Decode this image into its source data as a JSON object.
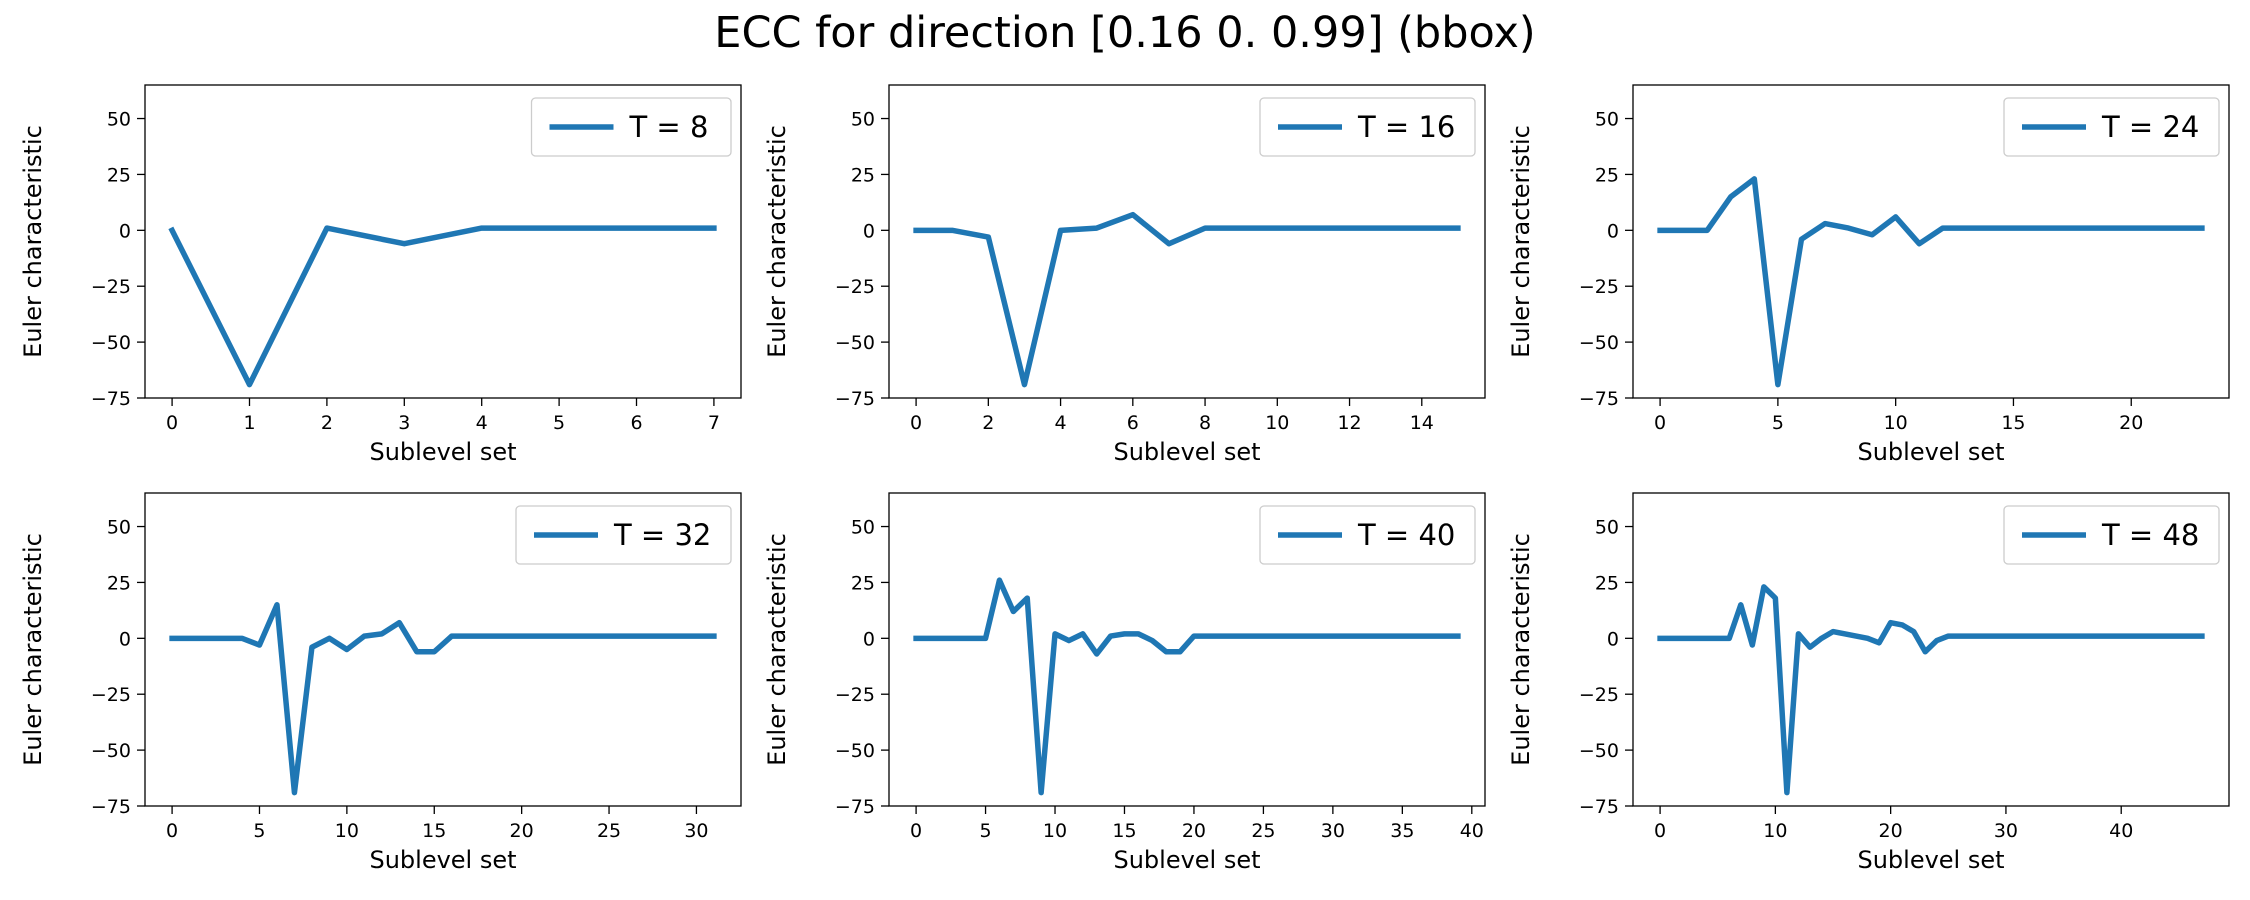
{
  "figure": {
    "title": "ECC for direction [0.16 0.   0.99] (bbox)",
    "line_color": "#1f77b4"
  },
  "chart_data": [
    {
      "type": "line",
      "xlabel": "Sublevel set",
      "ylabel": "Euler characteristic",
      "ylim": [
        -75,
        65
      ],
      "xlim": [
        -0.35,
        7.35
      ],
      "yticks": [
        -75,
        -50,
        -25,
        0,
        25,
        50
      ],
      "xticks": [
        0,
        1,
        2,
        3,
        4,
        5,
        6,
        7
      ],
      "grid": false,
      "legend": "top-right",
      "series": [
        {
          "name": "T = 8",
          "x": [
            0,
            1,
            2,
            3,
            4,
            5,
            6,
            7
          ],
          "y": [
            0,
            -69,
            1,
            -6,
            1,
            1,
            1,
            1
          ]
        }
      ]
    },
    {
      "type": "line",
      "xlabel": "Sublevel set",
      "ylabel": "Euler characteristic",
      "ylim": [
        -75,
        65
      ],
      "xlim": [
        -0.75,
        15.75
      ],
      "yticks": [
        -75,
        -50,
        -25,
        0,
        25,
        50
      ],
      "xticks": [
        0,
        2,
        4,
        6,
        8,
        10,
        12,
        14
      ],
      "grid": false,
      "legend": "top-right",
      "series": [
        {
          "name": "T = 16",
          "x": [
            0,
            1,
            2,
            3,
            4,
            5,
            6,
            7,
            8,
            9,
            10,
            11,
            12,
            13,
            14,
            15
          ],
          "y": [
            0,
            0,
            -3,
            -69,
            0,
            1,
            7,
            -6,
            1,
            1,
            1,
            1,
            1,
            1,
            1,
            1
          ]
        }
      ]
    },
    {
      "type": "line",
      "xlabel": "Sublevel set",
      "ylabel": "Euler characteristic",
      "ylim": [
        -75,
        65
      ],
      "xlim": [
        -1.15,
        24.15
      ],
      "yticks": [
        -75,
        -50,
        -25,
        0,
        25,
        50
      ],
      "xticks": [
        0,
        5,
        10,
        15,
        20
      ],
      "grid": false,
      "legend": "top-right",
      "series": [
        {
          "name": "T = 24",
          "x": [
            0,
            1,
            2,
            3,
            4,
            5,
            6,
            7,
            8,
            9,
            10,
            11,
            12,
            13,
            14,
            15,
            16,
            17,
            18,
            19,
            20,
            21,
            22,
            23
          ],
          "y": [
            0,
            0,
            0,
            15,
            23,
            -69,
            -4,
            3,
            1,
            -2,
            6,
            -6,
            1,
            1,
            1,
            1,
            1,
            1,
            1,
            1,
            1,
            1,
            1,
            1
          ]
        }
      ]
    },
    {
      "type": "line",
      "xlabel": "Sublevel set",
      "ylabel": "Euler characteristic",
      "ylim": [
        -75,
        65
      ],
      "xlim": [
        -1.55,
        32.55
      ],
      "yticks": [
        -75,
        -50,
        -25,
        0,
        25,
        50
      ],
      "xticks": [
        0,
        5,
        10,
        15,
        20,
        25,
        30
      ],
      "grid": false,
      "legend": "top-right",
      "series": [
        {
          "name": "T = 32",
          "x": [
            0,
            1,
            2,
            3,
            4,
            5,
            6,
            7,
            8,
            9,
            10,
            11,
            12,
            13,
            14,
            15,
            16,
            17,
            18,
            19,
            20,
            21,
            22,
            23,
            24,
            25,
            26,
            27,
            28,
            29,
            30,
            31
          ],
          "y": [
            0,
            0,
            0,
            0,
            0,
            -3,
            15,
            -69,
            -4,
            0,
            -5,
            1,
            2,
            7,
            -6,
            -6,
            1,
            1,
            1,
            1,
            1,
            1,
            1,
            1,
            1,
            1,
            1,
            1,
            1,
            1,
            1,
            1
          ]
        }
      ]
    },
    {
      "type": "line",
      "xlabel": "Sublevel set",
      "ylabel": "Euler characteristic",
      "ylim": [
        -75,
        65
      ],
      "xlim": [
        -1.95,
        40.95
      ],
      "yticks": [
        -75,
        -50,
        -25,
        0,
        25,
        50
      ],
      "xticks": [
        0,
        5,
        10,
        15,
        20,
        25,
        30,
        35,
        40
      ],
      "grid": false,
      "legend": "top-right",
      "series": [
        {
          "name": "T = 40",
          "x": [
            0,
            1,
            2,
            3,
            4,
            5,
            6,
            7,
            8,
            9,
            10,
            11,
            12,
            13,
            14,
            15,
            16,
            17,
            18,
            19,
            20,
            21,
            22,
            23,
            24,
            25,
            26,
            27,
            28,
            29,
            30,
            31,
            32,
            33,
            34,
            35,
            36,
            37,
            38,
            39
          ],
          "y": [
            0,
            0,
            0,
            0,
            0,
            0,
            26,
            12,
            18,
            -69,
            2,
            -1,
            2,
            -7,
            1,
            2,
            2,
            -1,
            -6,
            -6,
            1,
            1,
            1,
            1,
            1,
            1,
            1,
            1,
            1,
            1,
            1,
            1,
            1,
            1,
            1,
            1,
            1,
            1,
            1,
            1
          ]
        }
      ]
    },
    {
      "type": "line",
      "xlabel": "Sublevel set",
      "ylabel": "Euler characteristic",
      "ylim": [
        -75,
        65
      ],
      "xlim": [
        -2.35,
        49.35
      ],
      "yticks": [
        -75,
        -50,
        -25,
        0,
        25,
        50
      ],
      "xticks": [
        0,
        10,
        20,
        30,
        40
      ],
      "grid": false,
      "legend": "top-right",
      "series": [
        {
          "name": "T = 48",
          "x": [
            0,
            1,
            2,
            3,
            4,
            5,
            6,
            7,
            8,
            9,
            10,
            11,
            12,
            13,
            14,
            15,
            16,
            17,
            18,
            19,
            20,
            21,
            22,
            23,
            24,
            25,
            26,
            27,
            28,
            29,
            30,
            31,
            32,
            33,
            34,
            35,
            36,
            37,
            38,
            39,
            40,
            41,
            42,
            43,
            44,
            45,
            46,
            47
          ],
          "y": [
            0,
            0,
            0,
            0,
            0,
            0,
            0,
            15,
            -3,
            23,
            18,
            -69,
            2,
            -4,
            0,
            3,
            2,
            1,
            0,
            -2,
            7,
            6,
            3,
            -6,
            -1,
            1,
            1,
            1,
            1,
            1,
            1,
            1,
            1,
            1,
            1,
            1,
            1,
            1,
            1,
            1,
            1,
            1,
            1,
            1,
            1,
            1,
            1,
            1
          ]
        }
      ]
    }
  ]
}
